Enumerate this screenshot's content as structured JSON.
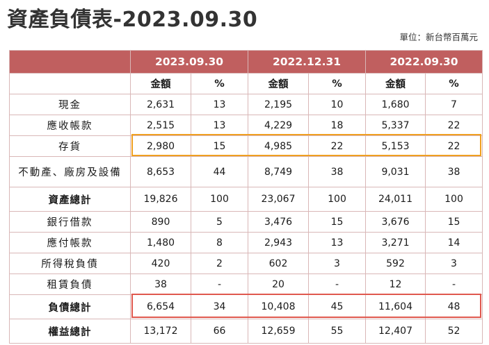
{
  "title": "資產負債表-2023.09.30",
  "unit": "單位：新台幣百萬元",
  "table": {
    "periods": [
      "2023.09.30",
      "2022.12.31",
      "2022.09.30"
    ],
    "subheaders": [
      "金額",
      "%"
    ],
    "rows": [
      {
        "label": "現金",
        "vals": [
          "2,631",
          "13",
          "2,195",
          "10",
          "1,680",
          "7"
        ]
      },
      {
        "label": "應收帳款",
        "vals": [
          "2,515",
          "13",
          "4,229",
          "18",
          "5,337",
          "22"
        ]
      },
      {
        "label": "存貨",
        "vals": [
          "2,980",
          "15",
          "4,985",
          "22",
          "5,153",
          "22"
        ]
      },
      {
        "label": "不動產、廠房及設備",
        "vals": [
          "8,653",
          "44",
          "8,749",
          "38",
          "9,031",
          "38"
        ]
      },
      {
        "label": "資產總計",
        "vals": [
          "19,826",
          "100",
          "23,067",
          "100",
          "24,011",
          "100"
        ]
      },
      {
        "label": "銀行借款",
        "vals": [
          "890",
          "5",
          "3,476",
          "15",
          "3,676",
          "15"
        ]
      },
      {
        "label": "應付帳款",
        "vals": [
          "1,480",
          "8",
          "2,943",
          "13",
          "3,271",
          "14"
        ]
      },
      {
        "label": "所得稅負債",
        "vals": [
          "420",
          "2",
          "602",
          "3",
          "592",
          "3"
        ]
      },
      {
        "label": "租賃負債",
        "vals": [
          "38",
          "-",
          "20",
          "-",
          "12",
          "-"
        ]
      },
      {
        "label": "負債總計",
        "vals": [
          "6,654",
          "34",
          "10,408",
          "45",
          "11,604",
          "48"
        ]
      },
      {
        "label": "權益總計",
        "vals": [
          "13,172",
          "66",
          "12,659",
          "55",
          "12,407",
          "52"
        ]
      }
    ]
  },
  "colors": {
    "header_fill": "#c05f5f",
    "grid_line": "#d9b7b7",
    "highlight_inventory": "#f0a020",
    "highlight_liabilities": "#e0584e"
  }
}
